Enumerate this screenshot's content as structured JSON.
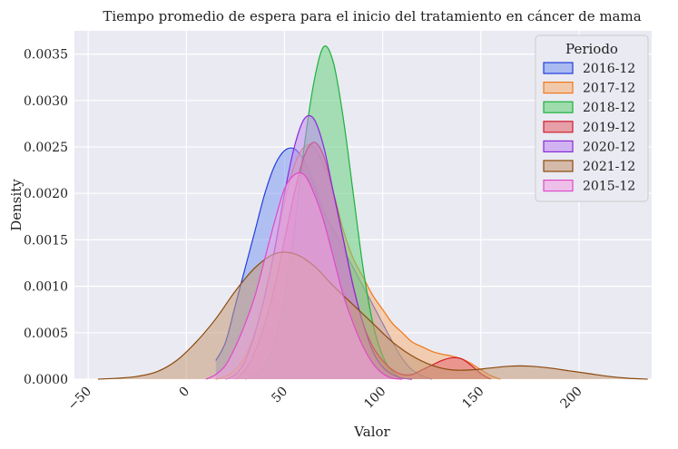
{
  "chart_data": {
    "type": "area",
    "title": "Tiempo promedio de espera para el inicio del tratamiento en cáncer de mama",
    "xlabel": "Valor",
    "ylabel": "Density",
    "xlim": [
      -57,
      237
    ],
    "ylim": [
      0,
      0.00375
    ],
    "x_ticks": [
      -50,
      0,
      50,
      100,
      150,
      200
    ],
    "x_tick_labels": [
      "−50",
      "0",
      "50",
      "100",
      "150",
      "200"
    ],
    "y_ticks": [
      0,
      0.0005,
      0.001,
      0.0015,
      0.002,
      0.0025,
      0.003,
      0.0035
    ],
    "y_tick_labels": [
      "0.0000",
      "0.0005",
      "0.0010",
      "0.0015",
      "0.0020",
      "0.0025",
      "0.0030",
      "0.0035"
    ],
    "grid": true,
    "legend": {
      "title": "Periodo",
      "placement": "upper right"
    },
    "series": [
      {
        "name": "2016-12",
        "color": "#1f3fe0",
        "fill": "#7f9bf0",
        "x": [
          15,
          20,
          25,
          30,
          35,
          40,
          45,
          50,
          55,
          60,
          65,
          70,
          75,
          80,
          85,
          90,
          95,
          100,
          105,
          110,
          115,
          120,
          125
        ],
        "y": [
          0.0002,
          0.0004,
          0.0008,
          0.0012,
          0.0016,
          0.002,
          0.0023,
          0.00246,
          0.00248,
          0.00235,
          0.0021,
          0.0018,
          0.0016,
          0.0014,
          0.0012,
          0.001,
          0.0008,
          0.0006,
          0.0004,
          0.00022,
          0.0001,
          4e-05,
          0.0
        ]
      },
      {
        "name": "2017-12",
        "color": "#f07818",
        "fill": "#f5b27a",
        "x": [
          15,
          20,
          25,
          30,
          35,
          40,
          45,
          50,
          55,
          60,
          65,
          70,
          75,
          80,
          85,
          90,
          95,
          100,
          105,
          110,
          115,
          120,
          125,
          130,
          135,
          140,
          145,
          150,
          155,
          160
        ],
        "y": [
          0.0,
          3e-05,
          0.0001,
          0.00025,
          0.0005,
          0.0009,
          0.0014,
          0.0019,
          0.0023,
          0.0025,
          0.0025,
          0.0023,
          0.002,
          0.0016,
          0.0013,
          0.0011,
          0.0009,
          0.00075,
          0.0006,
          0.0005,
          0.0004,
          0.00035,
          0.0003,
          0.00027,
          0.00025,
          0.00022,
          0.00017,
          0.0001,
          4e-05,
          0.0
        ]
      },
      {
        "name": "2018-12",
        "color": "#1ab33a",
        "fill": "#6ad07f",
        "x": [
          30,
          35,
          40,
          45,
          50,
          55,
          60,
          65,
          70,
          75,
          80,
          85,
          90,
          95,
          100,
          105,
          110
        ],
        "y": [
          0.0,
          5e-05,
          0.00015,
          0.0004,
          0.0009,
          0.0016,
          0.0025,
          0.0032,
          0.00358,
          0.0034,
          0.0028,
          0.002,
          0.0012,
          0.0006,
          0.00025,
          8e-05,
          0.0
        ]
      },
      {
        "name": "2019-12",
        "color": "#d01c2c",
        "fill": "#e36a74",
        "x": [
          25,
          30,
          35,
          40,
          45,
          50,
          55,
          60,
          65,
          70,
          75,
          80,
          85,
          90,
          95,
          100,
          105,
          110,
          115,
          120,
          125,
          130,
          135,
          140,
          145,
          150,
          155
        ],
        "y": [
          0.0,
          0.0001,
          0.0003,
          0.0006,
          0.001,
          0.0015,
          0.002,
          0.0024,
          0.00255,
          0.0024,
          0.002,
          0.0015,
          0.001,
          0.0006,
          0.00035,
          0.0002,
          0.0001,
          5e-05,
          5e-05,
          0.0001,
          0.00015,
          0.0002,
          0.00023,
          0.00022,
          0.00015,
          6e-05,
          0.0
        ]
      },
      {
        "name": "2020-12",
        "color": "#8a2ad8",
        "fill": "#c08ef0",
        "x": [
          20,
          25,
          30,
          35,
          40,
          45,
          50,
          55,
          60,
          65,
          70,
          75,
          80,
          85,
          90,
          95,
          100,
          105,
          110,
          115
        ],
        "y": [
          0.0,
          5e-05,
          0.0002,
          0.0005,
          0.0009,
          0.0014,
          0.002,
          0.0025,
          0.0028,
          0.0028,
          0.0025,
          0.002,
          0.0015,
          0.001,
          0.0006,
          0.0003,
          0.00013,
          5e-05,
          1e-05,
          0.0
        ]
      },
      {
        "name": "2021-12",
        "color": "#8b4a0c",
        "fill": "#c69a78",
        "x": [
          -45,
          -35,
          -25,
          -15,
          -5,
          5,
          15,
          25,
          35,
          45,
          55,
          65,
          75,
          85,
          95,
          105,
          115,
          125,
          135,
          145,
          155,
          165,
          175,
          185,
          195,
          205,
          215,
          225,
          235
        ],
        "y": [
          0.0,
          1e-05,
          3e-05,
          8e-05,
          0.0002,
          0.0004,
          0.00065,
          0.00095,
          0.0012,
          0.00135,
          0.00135,
          0.00122,
          0.001,
          0.0008,
          0.0006,
          0.0004,
          0.00025,
          0.00015,
          0.0001,
          0.0001,
          0.00012,
          0.00014,
          0.00014,
          0.00012,
          9e-05,
          6e-05,
          3e-05,
          1e-05,
          0.0
        ]
      },
      {
        "name": "2015-12",
        "color": "#e049c9",
        "fill": "#f0a4e2",
        "x": [
          10,
          15,
          20,
          25,
          30,
          35,
          40,
          45,
          50,
          55,
          60,
          65,
          70,
          75,
          80,
          85,
          90,
          95,
          100,
          105,
          110
        ],
        "y": [
          0.0,
          5e-05,
          0.00015,
          0.00035,
          0.0006,
          0.0009,
          0.0013,
          0.0017,
          0.00205,
          0.0022,
          0.0022,
          0.002,
          0.0017,
          0.0013,
          0.0009,
          0.0006,
          0.00035,
          0.00017,
          6e-05,
          1e-05,
          0.0
        ]
      }
    ]
  }
}
